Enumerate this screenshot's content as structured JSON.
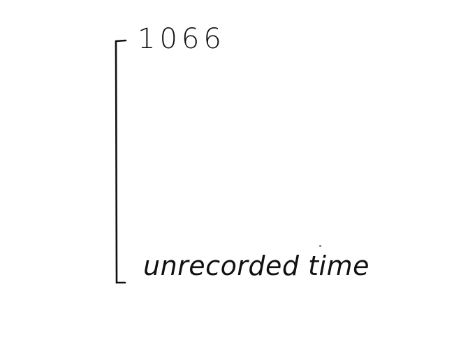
{
  "timeline": {
    "top_label": "1066",
    "bottom_label": "unrecorded time"
  }
}
